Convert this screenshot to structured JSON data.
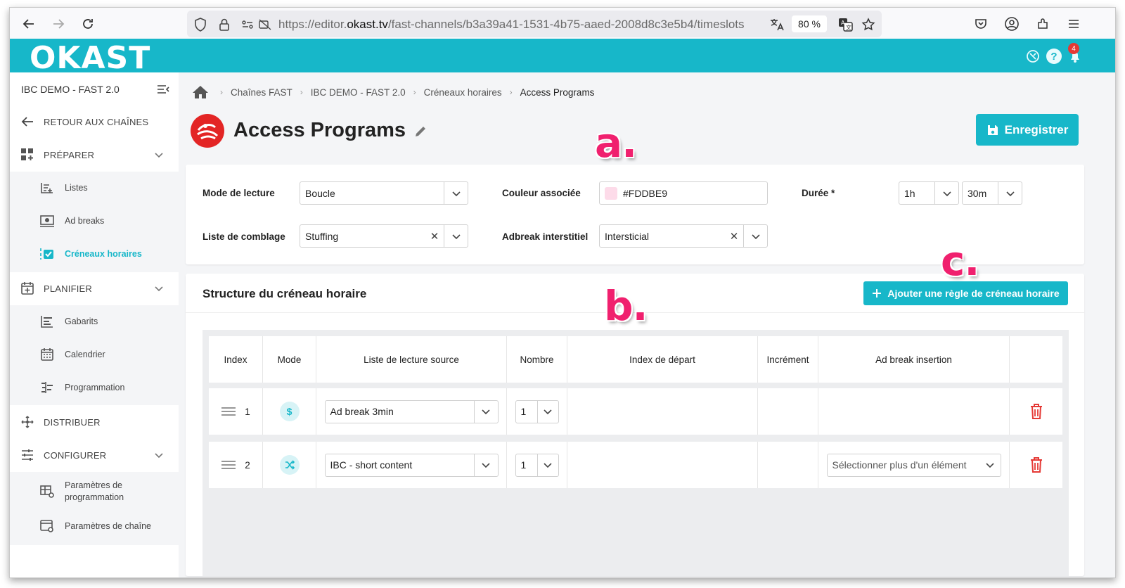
{
  "browser": {
    "url_prefix": "https://editor.",
    "url_domain": "okast.tv",
    "url_path": "/fast-channels/b3a39a41-1531-4b75-aaed-2008d8c3e5b4/timeslots",
    "zoom": "80 %"
  },
  "app": {
    "logo": "OKAST",
    "notification_count": "4"
  },
  "sidebar": {
    "channel_name": "IBC DEMO - FAST 2.0",
    "back_label": "RETOUR AUX CHAÎNES",
    "sections": [
      {
        "label": "PRÉPARER",
        "icon": "grid-plus-icon"
      },
      {
        "label": "PLANIFIER",
        "icon": "calendar-plus-icon"
      },
      {
        "label": "DISTRIBUER",
        "icon": "distribute-arrows-icon"
      },
      {
        "label": "CONFIGURER",
        "icon": "sliders-icon"
      }
    ],
    "preparer_items": [
      "Listes",
      "Ad breaks",
      "Créneaux horaires"
    ],
    "planifier_items": [
      "Gabarits",
      "Calendrier",
      "Programmation"
    ],
    "configurer_items": [
      "Paramètres de programmation",
      "Paramètres de chaîne"
    ],
    "active_item": "Créneaux horaires",
    "accent_color": "#17B7C9"
  },
  "breadcrumb": [
    "Chaînes FAST",
    "IBC DEMO - FAST 2.0",
    "Créneaux horaires",
    "Access Programs"
  ],
  "page": {
    "title": "Access Programs",
    "save_label": "Enregistrer",
    "annotations": [
      "a.",
      "b.",
      "c."
    ]
  },
  "form": {
    "mode_lecture_label": "Mode de lecture",
    "mode_lecture_value": "Boucle",
    "couleur_label": "Couleur associée",
    "couleur_value": "#FDDBE9",
    "duree_label": "Durée *",
    "duree_hours": "1h",
    "duree_minutes": "30m",
    "comblage_label": "Liste de comblage",
    "comblage_value": "Stuffing",
    "adbreak_label": "Adbreak interstitiel",
    "adbreak_value": "Intersticial"
  },
  "structure": {
    "title": "Structure du créneau horaire",
    "add_rule_label": "Ajouter une règle de créneau horaire",
    "columns": [
      "Index",
      "Mode",
      "Liste de lecture source",
      "Nombre",
      "Index de départ",
      "Incrément",
      "Ad break insertion"
    ],
    "rows": [
      {
        "index": "1",
        "mode_icon": "dollar-icon",
        "source": "Ad break 3min",
        "nombre": "1",
        "ad_break_insertion": ""
      },
      {
        "index": "2",
        "mode_icon": "shuffle-icon",
        "source": "IBC - short content",
        "nombre": "1",
        "ad_break_insertion": "Sélectionner plus d'un élément"
      }
    ]
  }
}
